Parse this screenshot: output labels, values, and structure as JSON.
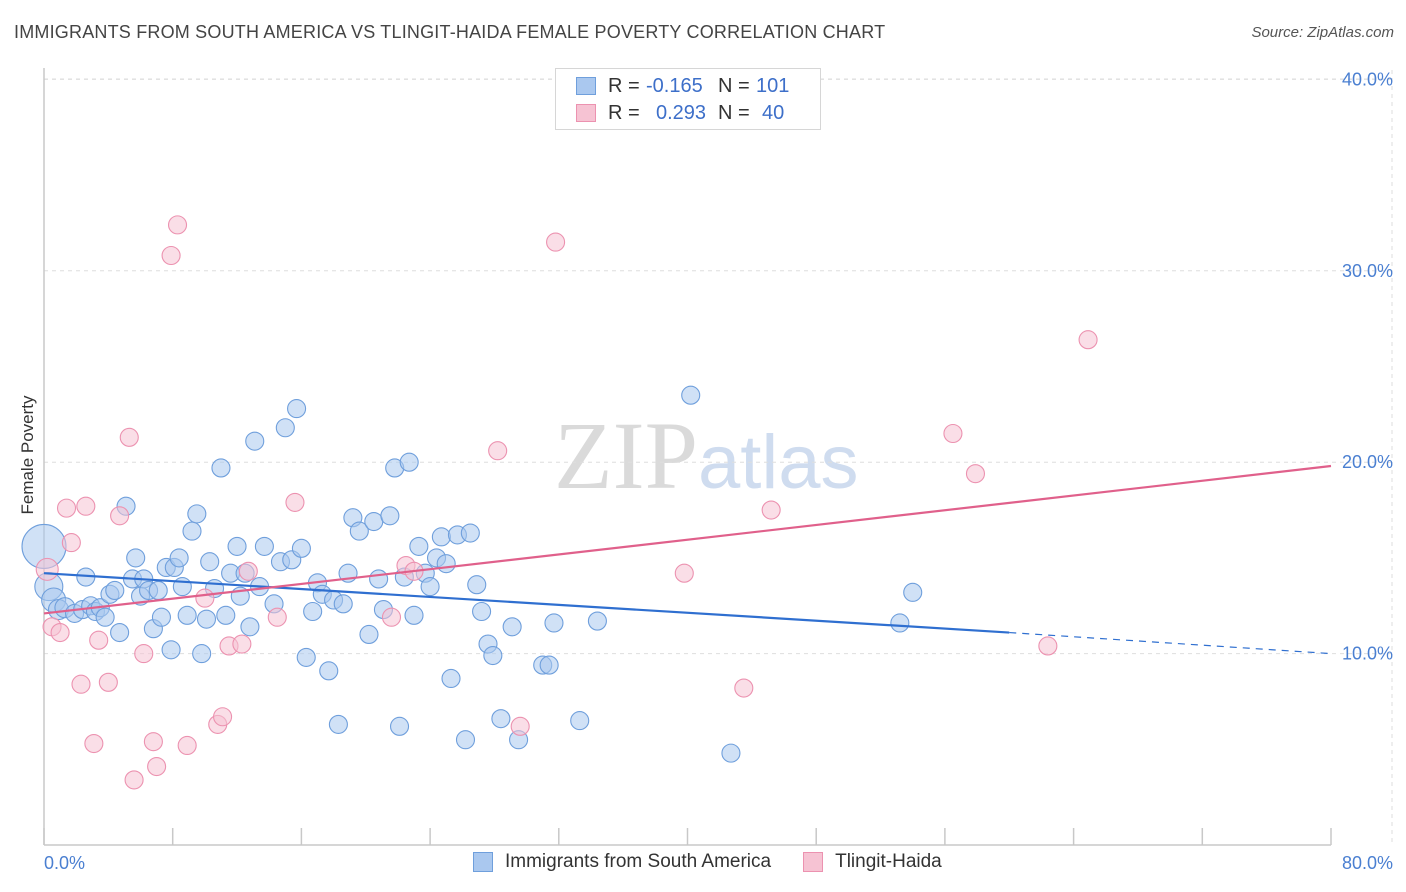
{
  "title": "IMMIGRANTS FROM SOUTH AMERICA VS TLINGIT-HAIDA FEMALE POVERTY CORRELATION CHART",
  "source": "Source: ZipAtlas.com",
  "watermark": {
    "zip": "ZIP",
    "atlas": "atlas"
  },
  "legend_stats": [
    {
      "r_label": "R =",
      "r_value": "-0.165",
      "n_label": "N =",
      "n_value": "101"
    },
    {
      "r_label": "R =",
      "r_value": "0.293",
      "n_label": "N =",
      "n_value": "40"
    }
  ],
  "chart_data": {
    "type": "scatter",
    "title": "IMMIGRANTS FROM SOUTH AMERICA VS TLINGIT-HAIDA FEMALE POVERTY CORRELATION CHART",
    "xlabel": "",
    "ylabel": "Female Poverty",
    "xlim": [
      0,
      80
    ],
    "ylim": [
      0,
      42
    ],
    "x_tick_labels": [
      "0.0%",
      "80.0%"
    ],
    "y_ticks": [
      10,
      20,
      30,
      40
    ],
    "y_tick_labels": [
      "10.0%",
      "20.0%",
      "30.0%",
      "40.0%"
    ],
    "grid": true,
    "legend_position": "bottom",
    "colors": {
      "series_a_fill": "#aac8ef",
      "series_a_stroke": "#6f9fdc",
      "series_a_line": "#2f6fd0",
      "series_b_fill": "#f6c3d3",
      "series_b_stroke": "#ec92b0",
      "series_b_line": "#e0608b",
      "axis_text": "#4a7fd1"
    },
    "series": [
      {
        "name": "Immigrants from South America",
        "trend": {
          "x0": 0,
          "y0": 14.2,
          "x1": 60,
          "y1": 11.1,
          "dash_to_x": 80,
          "dash_to_y": 10.0
        },
        "points": [
          [
            0.0,
            15.6,
            22
          ],
          [
            0.3,
            13.5,
            14
          ],
          [
            0.6,
            12.8,
            12
          ],
          [
            0.9,
            12.3,
            10
          ],
          [
            1.3,
            12.4,
            10
          ],
          [
            1.9,
            12.1,
            9
          ],
          [
            2.4,
            12.3,
            9
          ],
          [
            2.6,
            14.0,
            9
          ],
          [
            2.9,
            12.5,
            9
          ],
          [
            3.2,
            12.2,
            9
          ],
          [
            3.5,
            12.4,
            9
          ],
          [
            3.8,
            11.9,
            9
          ],
          [
            4.1,
            13.1,
            9
          ],
          [
            4.4,
            13.3,
            9
          ],
          [
            4.7,
            11.1,
            9
          ],
          [
            5.1,
            17.7,
            9
          ],
          [
            5.5,
            13.9,
            9
          ],
          [
            5.7,
            15.0,
            9
          ],
          [
            6.0,
            13.0,
            9
          ],
          [
            6.2,
            13.9,
            9
          ],
          [
            6.5,
            13.3,
            9
          ],
          [
            6.8,
            11.3,
            9
          ],
          [
            7.1,
            13.3,
            9
          ],
          [
            7.3,
            11.9,
            9
          ],
          [
            7.6,
            14.5,
            9
          ],
          [
            7.9,
            10.2,
            9
          ],
          [
            8.1,
            14.5,
            9
          ],
          [
            8.4,
            15.0,
            9
          ],
          [
            8.6,
            13.5,
            9
          ],
          [
            8.9,
            12.0,
            9
          ],
          [
            9.2,
            16.4,
            9
          ],
          [
            9.5,
            17.3,
            9
          ],
          [
            9.8,
            10.0,
            9
          ],
          [
            10.1,
            11.8,
            9
          ],
          [
            10.3,
            14.8,
            9
          ],
          [
            10.6,
            13.4,
            9
          ],
          [
            11.0,
            19.7,
            9
          ],
          [
            11.3,
            12.0,
            9
          ],
          [
            11.6,
            14.2,
            9
          ],
          [
            12.0,
            15.6,
            9
          ],
          [
            12.2,
            13.0,
            9
          ],
          [
            12.5,
            14.2,
            9
          ],
          [
            12.8,
            11.4,
            9
          ],
          [
            13.1,
            21.1,
            9
          ],
          [
            13.4,
            13.5,
            9
          ],
          [
            13.7,
            15.6,
            9
          ],
          [
            14.3,
            12.6,
            9
          ],
          [
            14.7,
            14.8,
            9
          ],
          [
            15.0,
            21.8,
            9
          ],
          [
            15.4,
            14.9,
            9
          ],
          [
            15.7,
            22.8,
            9
          ],
          [
            16.0,
            15.5,
            9
          ],
          [
            16.3,
            9.8,
            9
          ],
          [
            16.7,
            12.2,
            9
          ],
          [
            17.0,
            13.7,
            9
          ],
          [
            17.3,
            13.1,
            9
          ],
          [
            17.7,
            9.1,
            9
          ],
          [
            18.0,
            12.8,
            9
          ],
          [
            18.3,
            6.3,
            9
          ],
          [
            18.6,
            12.6,
            9
          ],
          [
            18.9,
            14.2,
            9
          ],
          [
            19.2,
            17.1,
            9
          ],
          [
            19.6,
            16.4,
            9
          ],
          [
            20.2,
            11.0,
            9
          ],
          [
            20.5,
            16.9,
            9
          ],
          [
            20.8,
            13.9,
            9
          ],
          [
            21.1,
            12.3,
            9
          ],
          [
            21.5,
            17.2,
            9
          ],
          [
            21.8,
            19.7,
            9
          ],
          [
            22.1,
            6.2,
            9
          ],
          [
            22.4,
            14.0,
            9
          ],
          [
            22.7,
            20.0,
            9
          ],
          [
            23.0,
            12.0,
            9
          ],
          [
            23.3,
            15.6,
            9
          ],
          [
            23.7,
            14.2,
            9
          ],
          [
            24.0,
            13.5,
            9
          ],
          [
            24.4,
            15.0,
            9
          ],
          [
            24.7,
            16.1,
            9
          ],
          [
            25.0,
            14.7,
            9
          ],
          [
            25.3,
            8.7,
            9
          ],
          [
            25.7,
            16.2,
            9
          ],
          [
            26.2,
            5.5,
            9
          ],
          [
            26.5,
            16.3,
            9
          ],
          [
            26.9,
            13.6,
            9
          ],
          [
            27.2,
            12.2,
            9
          ],
          [
            27.6,
            10.5,
            9
          ],
          [
            27.9,
            9.9,
            9
          ],
          [
            28.4,
            6.6,
            9
          ],
          [
            29.1,
            11.4,
            9
          ],
          [
            29.5,
            5.5,
            9
          ],
          [
            31.0,
            9.4,
            9
          ],
          [
            31.4,
            9.4,
            9
          ],
          [
            31.7,
            11.6,
            9
          ],
          [
            33.3,
            6.5,
            9
          ],
          [
            34.4,
            11.7,
            9
          ],
          [
            40.2,
            23.5,
            9
          ],
          [
            42.7,
            4.8,
            9
          ],
          [
            53.2,
            11.6,
            9
          ],
          [
            54.0,
            13.2,
            9
          ]
        ]
      },
      {
        "name": "Tlingit-Haida",
        "trend": {
          "x0": 0,
          "y0": 12.1,
          "x1": 80,
          "y1": 19.8
        },
        "points": [
          [
            0.2,
            14.4,
            11
          ],
          [
            0.5,
            11.4,
            9
          ],
          [
            1.0,
            11.1,
            9
          ],
          [
            1.4,
            17.6,
            9
          ],
          [
            1.7,
            15.8,
            9
          ],
          [
            2.3,
            8.4,
            9
          ],
          [
            2.6,
            17.7,
            9
          ],
          [
            3.1,
            5.3,
            9
          ],
          [
            3.4,
            10.7,
            9
          ],
          [
            4.0,
            8.5,
            9
          ],
          [
            4.7,
            17.2,
            9
          ],
          [
            5.3,
            21.3,
            9
          ],
          [
            5.6,
            3.4,
            9
          ],
          [
            6.2,
            10.0,
            9
          ],
          [
            6.8,
            5.4,
            9
          ],
          [
            7.0,
            4.1,
            9
          ],
          [
            7.9,
            30.8,
            9
          ],
          [
            8.3,
            32.4,
            9
          ],
          [
            8.9,
            5.2,
            9
          ],
          [
            10.0,
            12.9,
            9
          ],
          [
            10.8,
            6.3,
            9
          ],
          [
            11.1,
            6.7,
            9
          ],
          [
            11.5,
            10.4,
            9
          ],
          [
            12.3,
            10.5,
            9
          ],
          [
            12.7,
            14.3,
            9
          ],
          [
            14.5,
            11.9,
            9
          ],
          [
            15.6,
            17.9,
            9
          ],
          [
            21.6,
            11.9,
            9
          ],
          [
            22.5,
            14.6,
            9
          ],
          [
            23.0,
            14.3,
            9
          ],
          [
            28.2,
            20.6,
            9
          ],
          [
            29.6,
            6.2,
            9
          ],
          [
            31.8,
            31.5,
            9
          ],
          [
            39.8,
            14.2,
            9
          ],
          [
            43.5,
            8.2,
            9
          ],
          [
            45.2,
            17.5,
            9
          ],
          [
            56.5,
            21.5,
            9
          ],
          [
            57.9,
            19.4,
            9
          ],
          [
            62.4,
            10.4,
            9
          ],
          [
            64.9,
            26.4,
            9
          ]
        ]
      }
    ]
  }
}
